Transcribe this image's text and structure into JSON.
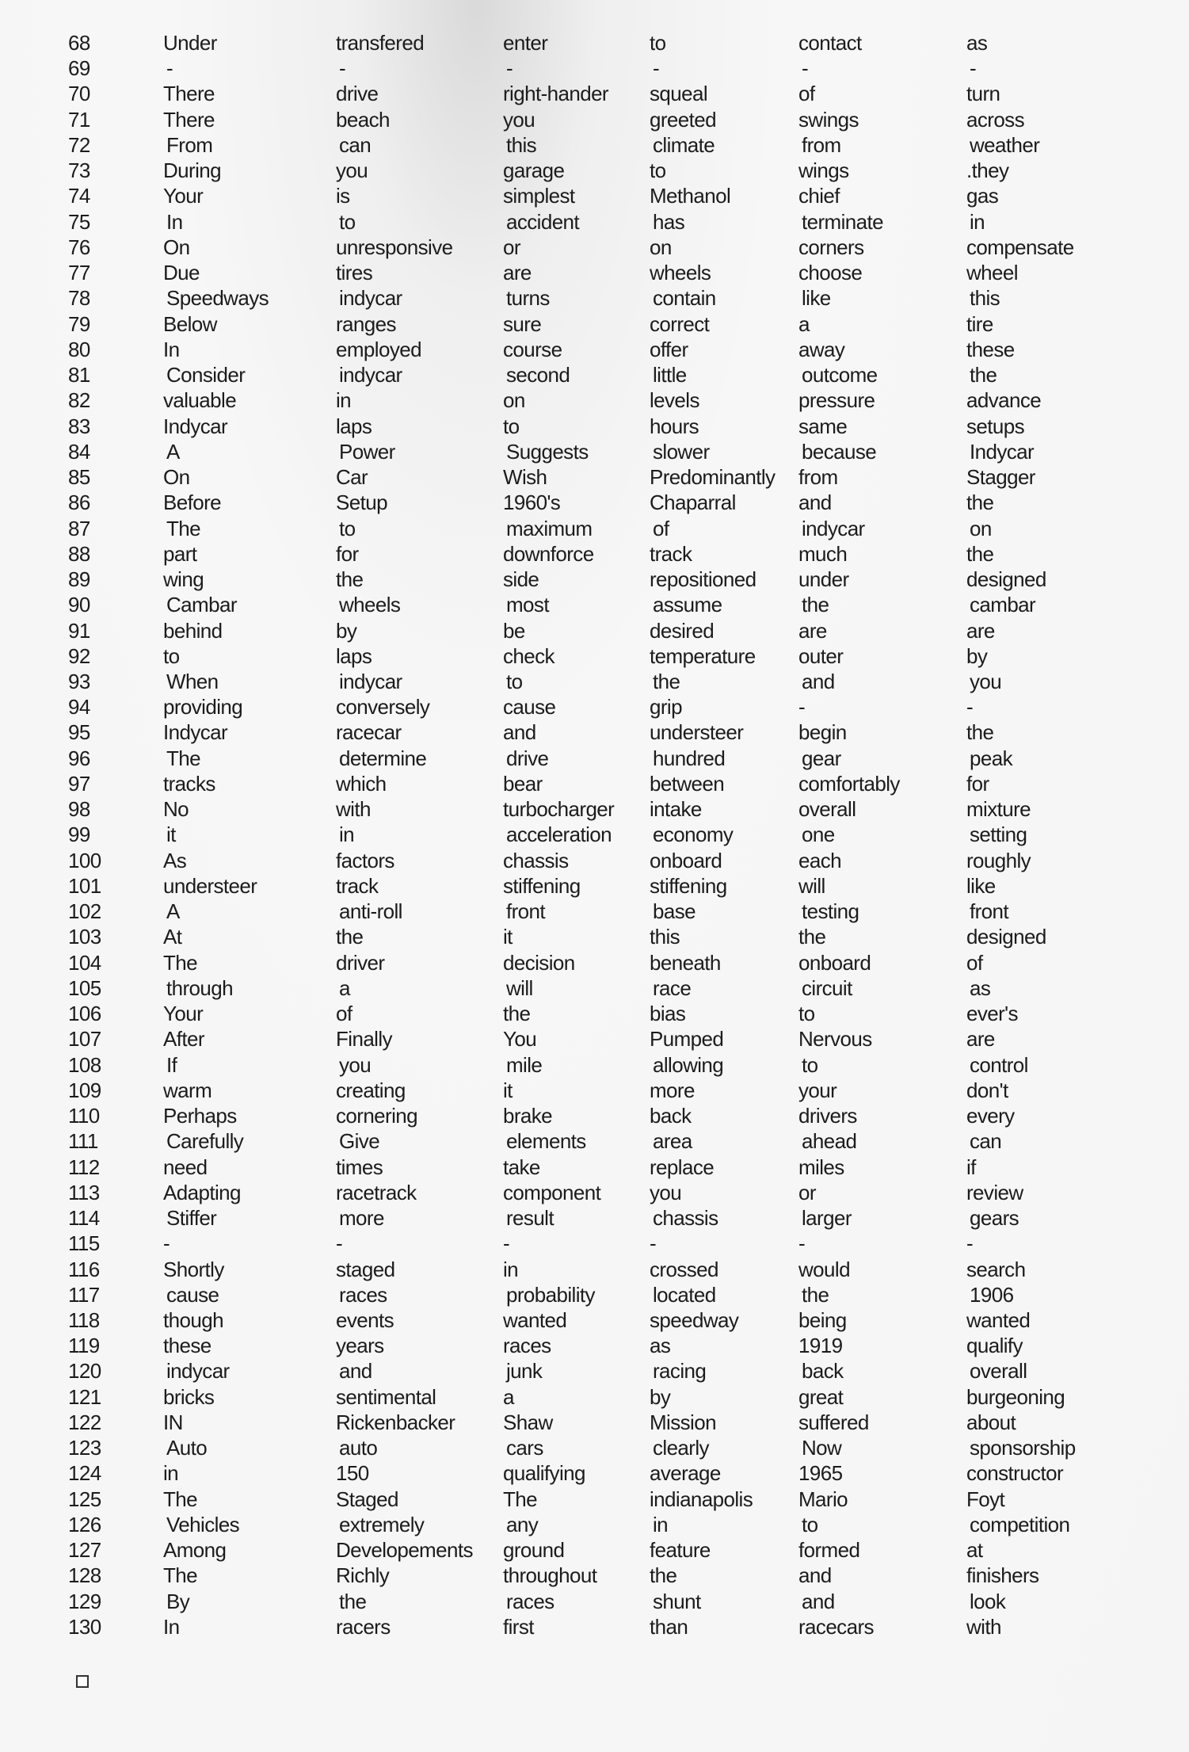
{
  "table": {
    "rows": [
      [
        "68",
        "Under",
        "transfered",
        "enter",
        "to",
        "contact",
        "as"
      ],
      [
        "69",
        "-",
        "-",
        "-",
        "-",
        "-",
        "-"
      ],
      [
        "70",
        "There",
        "drive",
        "right-hander",
        "squeal",
        "of",
        "turn"
      ],
      [
        "71",
        "There",
        "beach",
        "you",
        "greeted",
        "swings",
        "across"
      ],
      [
        "72",
        "From",
        "can",
        "this",
        "climate",
        "from",
        "weather"
      ],
      [
        "73",
        "During",
        "you",
        "garage",
        "to",
        "wings",
        ".they"
      ],
      [
        "74",
        "Your",
        "is",
        "simplest",
        "Methanol",
        "chief",
        "gas"
      ],
      [
        "75",
        "In",
        "to",
        "accident",
        "has",
        "terminate",
        "in"
      ],
      [
        "76",
        "On",
        "unresponsive",
        "or",
        "on",
        "corners",
        "compensate"
      ],
      [
        "77",
        "Due",
        "tires",
        "are",
        "wheels",
        "choose",
        "wheel"
      ],
      [
        "78",
        "Speedways",
        "indycar",
        "turns",
        "contain",
        "like",
        "this"
      ],
      [
        "79",
        "Below",
        "ranges",
        "sure",
        "correct",
        "a",
        "tire"
      ],
      [
        "80",
        "In",
        "employed",
        "course",
        "offer",
        "away",
        "these"
      ],
      [
        "81",
        "Consider",
        "indycar",
        "second",
        "little",
        "outcome",
        "the"
      ],
      [
        "82",
        "valuable",
        "in",
        "on",
        "levels",
        "pressure",
        "advance"
      ],
      [
        "83",
        "Indycar",
        "laps",
        "to",
        "hours",
        "same",
        "setups"
      ],
      [
        "84",
        "A",
        "Power",
        "Suggests",
        "slower",
        "because",
        "Indycar"
      ],
      [
        "85",
        "On",
        "Car",
        "Wish",
        "Predominantly",
        "from",
        "Stagger"
      ],
      [
        "86",
        "Before",
        "Setup",
        "1960's",
        "Chaparral",
        "and",
        "the"
      ],
      [
        "87",
        "The",
        "to",
        "maximum",
        "of",
        "indycar",
        "on"
      ],
      [
        "88",
        "part",
        "for",
        "downforce",
        "track",
        "much",
        "the"
      ],
      [
        "89",
        "wing",
        "the",
        "side",
        "repositioned",
        "under",
        "designed"
      ],
      [
        "90",
        "Cambar",
        "wheels",
        "most",
        "assume",
        "the",
        "cambar"
      ],
      [
        "91",
        "behind",
        "by",
        "be",
        "desired",
        "are",
        "are"
      ],
      [
        "92",
        "to",
        "laps",
        "check",
        "temperature",
        "outer",
        "by"
      ],
      [
        "93",
        "When",
        "indycar",
        "to",
        "the",
        "and",
        "you"
      ],
      [
        "94",
        "providing",
        "conversely",
        "cause",
        "grip",
        "-",
        "-"
      ],
      [
        "95",
        "Indycar",
        "racecar",
        "and",
        "understeer",
        "begin",
        "the"
      ],
      [
        "96",
        "The",
        "determine",
        "drive",
        "hundred",
        "gear",
        "peak"
      ],
      [
        "97",
        "tracks",
        "which",
        "bear",
        "between",
        "comfortably",
        "for"
      ],
      [
        "98",
        "No",
        "with",
        "turbocharger",
        "intake",
        "overall",
        "mixture"
      ],
      [
        "99",
        "it",
        "in",
        "acceleration",
        "economy",
        "one",
        "setting"
      ],
      [
        "100",
        "As",
        "factors",
        "chassis",
        "onboard",
        "each",
        "roughly"
      ],
      [
        "101",
        "understeer",
        "track",
        "stiffening",
        "stiffening",
        "will",
        "like"
      ],
      [
        "102",
        "A",
        "anti-roll",
        "front",
        "base",
        "testing",
        "front"
      ],
      [
        "103",
        "At",
        "the",
        "it",
        "this",
        "the",
        "designed"
      ],
      [
        "104",
        "The",
        "driver",
        "decision",
        "beneath",
        "onboard",
        "of"
      ],
      [
        "105",
        "through",
        "a",
        "will",
        "race",
        "circuit",
        "as"
      ],
      [
        "106",
        "Your",
        "of",
        "the",
        "bias",
        "to",
        "ever's"
      ],
      [
        "107",
        "After",
        "Finally",
        "You",
        "Pumped",
        "Nervous",
        "are"
      ],
      [
        "108",
        "If",
        "you",
        "mile",
        "allowing",
        "to",
        "control"
      ],
      [
        "109",
        "warm",
        "creating",
        "it",
        "more",
        "your",
        "don't"
      ],
      [
        "110",
        "Perhaps",
        "cornering",
        "brake",
        "back",
        "drivers",
        "every"
      ],
      [
        "111",
        "Carefully",
        "Give",
        "elements",
        "area",
        "ahead",
        "can"
      ],
      [
        "112",
        "need",
        "times",
        "take",
        "replace",
        "miles",
        "if"
      ],
      [
        "113",
        "Adapting",
        "racetrack",
        "component",
        "you",
        "or",
        "review"
      ],
      [
        "114",
        "Stiffer",
        "more",
        "result",
        "chassis",
        "larger",
        "gears"
      ],
      [
        "115",
        "-",
        "-",
        "-",
        "-",
        "-",
        "-"
      ],
      [
        "116",
        "Shortly",
        "staged",
        "in",
        "crossed",
        "would",
        "search"
      ],
      [
        "117",
        "cause",
        "races",
        "probability",
        "located",
        "the",
        "1906"
      ],
      [
        "118",
        "though",
        "events",
        "wanted",
        "speedway",
        "being",
        "wanted"
      ],
      [
        "119",
        "these",
        "years",
        "races",
        "as",
        "1919",
        "qualify"
      ],
      [
        "120",
        "indycar",
        "and",
        "junk",
        "racing",
        "back",
        "overall"
      ],
      [
        "121",
        "bricks",
        "sentimental",
        "a",
        "by",
        "great",
        "burgeoning"
      ],
      [
        "122",
        "IN",
        "Rickenbacker",
        "Shaw",
        "Mission",
        "suffered",
        "about"
      ],
      [
        "123",
        "Auto",
        "auto",
        "cars",
        "clearly",
        "Now",
        "sponsorship"
      ],
      [
        "124",
        "in",
        "150",
        "qualifying",
        "average",
        "1965",
        "constructor"
      ],
      [
        "125",
        "The",
        "Staged",
        "The",
        "indianapolis",
        "Mario",
        "Foyt"
      ],
      [
        "126",
        "Vehicles",
        "extremely",
        "any",
        "in",
        "to",
        "competition"
      ],
      [
        "127",
        "Among",
        "Developements",
        "ground",
        "feature",
        "formed",
        "at"
      ],
      [
        "128",
        "The",
        "Richly",
        "throughout",
        "the",
        "and",
        "finishers"
      ],
      [
        "129",
        "By",
        "the",
        "races",
        "shunt",
        "and",
        "look"
      ],
      [
        "130",
        "In",
        "racers",
        "first",
        "than",
        "racecars",
        "with"
      ]
    ]
  },
  "checkbox": {
    "checked": false
  }
}
